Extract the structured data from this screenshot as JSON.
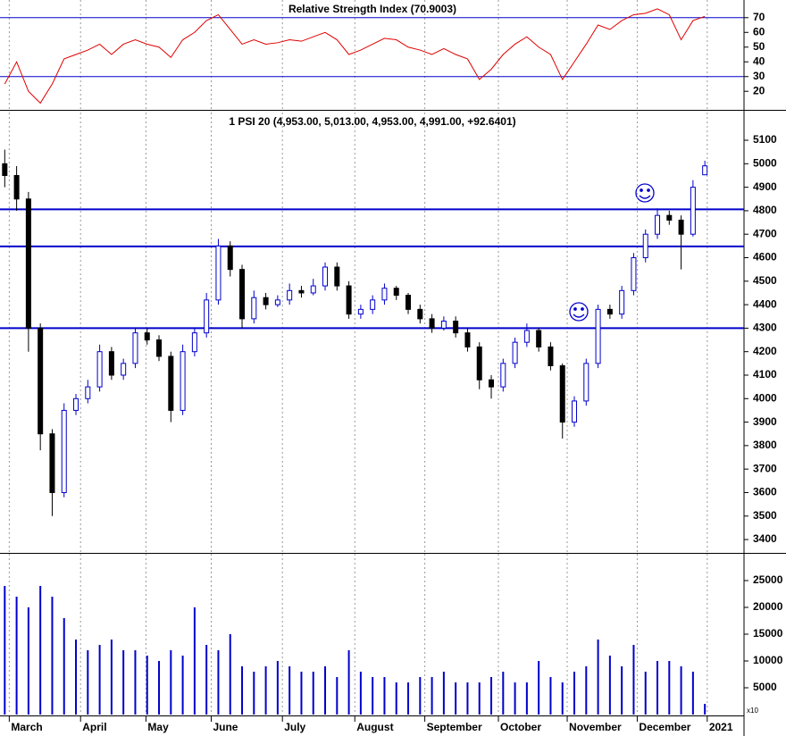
{
  "chart_data": [
    {
      "type": "line",
      "title": "Relative Strength Index (70.9003)",
      "color": "#e00000",
      "hline_color": "#0000cc",
      "x": [
        0,
        1,
        2,
        3,
        4,
        5,
        6,
        7,
        8,
        9,
        10,
        11,
        12,
        13,
        14,
        15,
        16,
        17,
        18,
        19,
        20,
        21,
        22,
        23,
        24,
        25,
        26,
        27,
        28,
        29,
        30,
        31,
        32,
        33,
        34,
        35,
        36,
        37,
        38,
        39,
        40,
        41,
        42,
        43,
        44,
        45,
        46,
        47,
        48,
        49,
        50,
        51,
        52,
        53,
        54,
        55,
        56,
        57,
        58,
        59
      ],
      "values": [
        25,
        40,
        20,
        12,
        25,
        42,
        45,
        48,
        52,
        45,
        52,
        55,
        52,
        50,
        43,
        55,
        60,
        68,
        72,
        62,
        52,
        55,
        52,
        53,
        55,
        54,
        57,
        60,
        55,
        45,
        48,
        52,
        56,
        55,
        50,
        48,
        45,
        49,
        45,
        42,
        28,
        35,
        45,
        52,
        57,
        50,
        45,
        28,
        40,
        52,
        65,
        62,
        68,
        72,
        73,
        76,
        72,
        55,
        68,
        70.9
      ],
      "xlim": [
        -0.4,
        62.3
      ],
      "ylim": [
        8,
        82
      ],
      "yticks": [
        20,
        30,
        40,
        50,
        60,
        70
      ],
      "hlines": [
        70,
        30
      ]
    },
    {
      "type": "candlestick",
      "title": "1 PSI 20 (4,953.00, 5,013.00, 4,953.00, 4,991.00, +92.6401)",
      "up_color": "#0000cc",
      "down_color": "#000000",
      "hline_color": "#0000cc",
      "x": [
        0,
        1,
        2,
        3,
        4,
        5,
        6,
        7,
        8,
        9,
        10,
        11,
        12,
        13,
        14,
        15,
        16,
        17,
        18,
        19,
        20,
        21,
        22,
        23,
        24,
        25,
        26,
        27,
        28,
        29,
        30,
        31,
        32,
        33,
        34,
        35,
        36,
        37,
        38,
        39,
        40,
        41,
        42,
        43,
        44,
        45,
        46,
        47,
        48,
        49,
        50,
        51,
        52,
        53,
        54,
        55,
        56,
        57,
        58,
        59
      ],
      "open": [
        5000,
        4950,
        4850,
        4300,
        3850,
        3600,
        3950,
        4000,
        4050,
        4200,
        4100,
        4150,
        4280,
        4250,
        4180,
        3950,
        4200,
        4280,
        4420,
        4650,
        4550,
        4340,
        4430,
        4400,
        4420,
        4460,
        4450,
        4480,
        4560,
        4480,
        4360,
        4380,
        4420,
        4470,
        4440,
        4380,
        4340,
        4300,
        4330,
        4280,
        4220,
        4080,
        4050,
        4150,
        4240,
        4290,
        4220,
        4140,
        3900,
        3990,
        4150,
        4380,
        4360,
        4460,
        4600,
        4700,
        4780,
        4760,
        4700,
        4953
      ],
      "high": [
        5060,
        4990,
        4880,
        4320,
        3870,
        3980,
        4020,
        4080,
        4230,
        4220,
        4170,
        4300,
        4300,
        4270,
        4200,
        4230,
        4300,
        4450,
        4680,
        4670,
        4570,
        4460,
        4450,
        4440,
        4490,
        4480,
        4510,
        4580,
        4580,
        4500,
        4400,
        4440,
        4490,
        4480,
        4450,
        4400,
        4360,
        4350,
        4350,
        4300,
        4240,
        4100,
        4170,
        4260,
        4320,
        4300,
        4240,
        4150,
        4010,
        4170,
        4400,
        4400,
        4480,
        4620,
        4720,
        4810,
        4800,
        4780,
        4930,
        5013
      ],
      "low": [
        4900,
        4800,
        4200,
        3780,
        3500,
        3580,
        3930,
        3980,
        4030,
        4080,
        4080,
        4130,
        4230,
        4160,
        3900,
        3930,
        4180,
        4260,
        4400,
        4520,
        4300,
        4320,
        4380,
        4390,
        4400,
        4430,
        4440,
        4460,
        4460,
        4340,
        4340,
        4360,
        4400,
        4420,
        4360,
        4320,
        4280,
        4290,
        4260,
        4200,
        4040,
        4000,
        4030,
        4130,
        4220,
        4200,
        4120,
        3830,
        3880,
        3970,
        4130,
        4340,
        4340,
        4440,
        4580,
        4680,
        4740,
        4550,
        4690,
        4953
      ],
      "close": [
        4950,
        4850,
        4300,
        3850,
        3600,
        3950,
        4000,
        4050,
        4200,
        4100,
        4150,
        4280,
        4250,
        4180,
        3950,
        4200,
        4280,
        4420,
        4650,
        4550,
        4340,
        4430,
        4400,
        4420,
        4460,
        4450,
        4480,
        4560,
        4480,
        4360,
        4380,
        4420,
        4470,
        4440,
        4380,
        4340,
        4300,
        4330,
        4280,
        4220,
        4080,
        4050,
        4150,
        4240,
        4290,
        4220,
        4140,
        3900,
        3990,
        4150,
        4380,
        4360,
        4460,
        4600,
        4700,
        4780,
        4760,
        4700,
        4900,
        4991
      ],
      "xlim": [
        -0.4,
        62.3
      ],
      "ylim": [
        3347,
        5218
      ],
      "yticks": [
        3400,
        3500,
        3600,
        3700,
        3800,
        3900,
        4000,
        4100,
        4200,
        4300,
        4400,
        4500,
        4600,
        4700,
        4800,
        4900,
        5000,
        5100
      ],
      "hlines": [
        4806,
        4648,
        4300
      ]
    },
    {
      "type": "bar",
      "color": "#0000cc",
      "y_unit_label": "x10",
      "x": [
        0,
        1,
        2,
        3,
        4,
        5,
        6,
        7,
        8,
        9,
        10,
        11,
        12,
        13,
        14,
        15,
        16,
        17,
        18,
        19,
        20,
        21,
        22,
        23,
        24,
        25,
        26,
        27,
        28,
        29,
        30,
        31,
        32,
        33,
        34,
        35,
        36,
        37,
        38,
        39,
        40,
        41,
        42,
        43,
        44,
        45,
        46,
        47,
        48,
        49,
        50,
        51,
        52,
        53,
        54,
        55,
        56,
        57,
        58,
        59
      ],
      "values": [
        24000,
        22000,
        20000,
        24000,
        22000,
        18000,
        14000,
        12000,
        13000,
        14000,
        12000,
        12000,
        11000,
        10000,
        12000,
        11000,
        20000,
        13000,
        12000,
        15000,
        9000,
        8000,
        9000,
        10000,
        9000,
        8000,
        8000,
        9000,
        7000,
        12000,
        8000,
        7000,
        7000,
        6000,
        6000,
        7000,
        7000,
        8000,
        6000,
        6000,
        6000,
        7000,
        8000,
        6000,
        6000,
        10000,
        7000,
        6000,
        8000,
        9000,
        14000,
        11000,
        9000,
        13000,
        8000,
        10000,
        10000,
        9000,
        8000,
        2000
      ],
      "xlim": [
        -0.4,
        62.3
      ],
      "ylim": [
        0,
        30000
      ],
      "yticks": [
        5000,
        10000,
        15000,
        20000,
        25000
      ],
      "xticks": [
        {
          "value": 0.38,
          "label": "March"
        },
        {
          "value": 6.39,
          "label": "April"
        },
        {
          "value": 11.9,
          "label": "May"
        },
        {
          "value": 17.4,
          "label": "June"
        },
        {
          "value": 23.4,
          "label": "July"
        },
        {
          "value": 29.5,
          "label": "August"
        },
        {
          "value": 35.4,
          "label": "September"
        },
        {
          "value": 41.6,
          "label": "October"
        },
        {
          "value": 47.4,
          "label": "November"
        },
        {
          "value": 53.3,
          "label": "December"
        },
        {
          "value": 59.2,
          "label": "2021"
        }
      ]
    }
  ]
}
